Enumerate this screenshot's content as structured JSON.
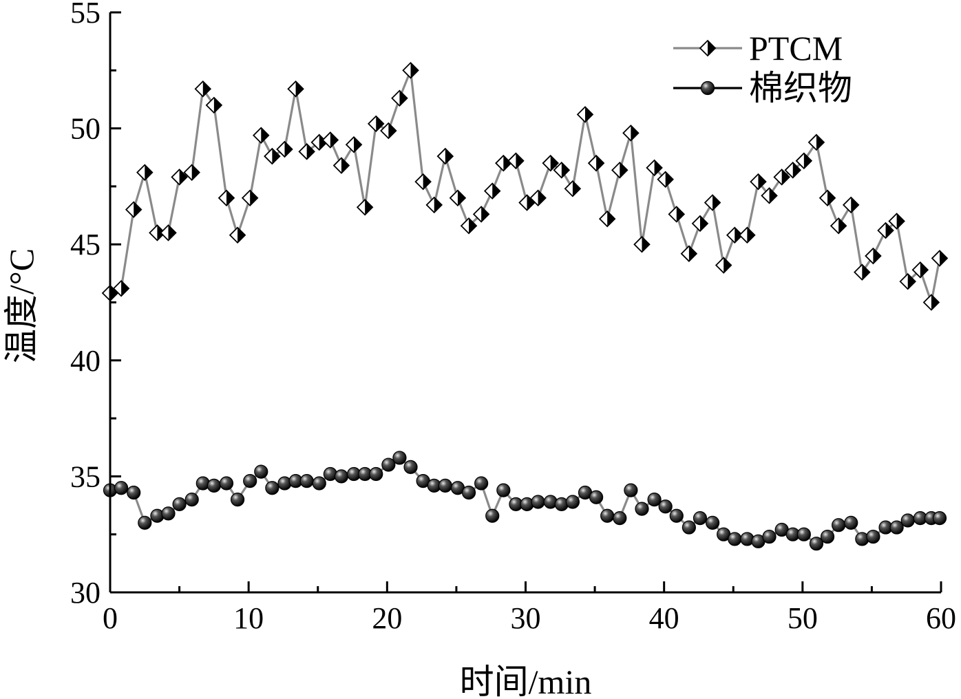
{
  "chart_data": {
    "type": "line",
    "title": "",
    "xlabel": "时间/min",
    "ylabel": "温度/°C",
    "xlim": [
      0,
      60
    ],
    "ylim": [
      30,
      55
    ],
    "xticks": [
      "0",
      "10",
      "20",
      "30",
      "40",
      "50",
      "60"
    ],
    "yticks": [
      "30",
      "35",
      "40",
      "45",
      "50",
      "55"
    ],
    "grid": false,
    "legend_position": "top-right",
    "line_color": "#8a8a8a",
    "series": [
      {
        "name": "PTCM",
        "marker": "half-filled-diamond",
        "x": [
          0,
          0.8,
          1.7,
          2.5,
          3.4,
          4.2,
          5.0,
          5.9,
          6.7,
          7.5,
          8.4,
          9.2,
          10.1,
          10.9,
          11.7,
          12.6,
          13.4,
          14.2,
          15.1,
          15.9,
          16.7,
          17.6,
          18.4,
          19.2,
          20.1,
          20.9,
          21.7,
          22.6,
          23.4,
          24.2,
          25.1,
          25.9,
          26.8,
          27.6,
          28.4,
          29.3,
          30.1,
          30.9,
          31.8,
          32.6,
          33.4,
          34.3,
          35.1,
          35.9,
          36.8,
          37.6,
          38.4,
          39.3,
          40.1,
          40.9,
          41.8,
          42.6,
          43.5,
          44.3,
          45.1,
          46.0,
          46.8,
          47.6,
          48.5,
          49.3,
          50.1,
          51.0,
          51.8,
          52.6,
          53.5,
          54.3,
          55.1,
          56.0,
          56.8,
          57.6,
          58.5,
          59.3,
          59.9
        ],
        "y": [
          42.9,
          43.1,
          46.5,
          48.1,
          45.5,
          45.5,
          47.9,
          48.1,
          51.7,
          51.0,
          47.0,
          45.4,
          47.0,
          49.7,
          48.8,
          49.1,
          51.7,
          49.0,
          49.4,
          49.5,
          48.4,
          49.3,
          46.6,
          50.2,
          49.9,
          51.3,
          52.5,
          47.7,
          46.7,
          48.8,
          47.0,
          45.8,
          46.3,
          47.3,
          48.5,
          48.6,
          46.8,
          47.0,
          48.5,
          48.2,
          47.4,
          50.6,
          48.5,
          46.1,
          48.2,
          49.8,
          45.0,
          48.3,
          47.8,
          46.3,
          44.6,
          45.9,
          46.8,
          44.1,
          45.4,
          45.4,
          47.7,
          47.1,
          47.9,
          48.2,
          48.6,
          49.4,
          47.0,
          45.8,
          46.7,
          43.8,
          44.5,
          45.6,
          46.0,
          43.4,
          43.9,
          42.5,
          44.4
        ]
      },
      {
        "name": "棉织物",
        "marker": "filled-circle",
        "x": [
          0,
          0.8,
          1.7,
          2.5,
          3.4,
          4.2,
          5.0,
          5.9,
          6.7,
          7.5,
          8.4,
          9.2,
          10.1,
          10.9,
          11.7,
          12.6,
          13.4,
          14.2,
          15.1,
          15.9,
          16.7,
          17.6,
          18.4,
          19.2,
          20.1,
          20.9,
          21.7,
          22.6,
          23.4,
          24.2,
          25.1,
          25.9,
          26.8,
          27.6,
          28.4,
          29.3,
          30.1,
          30.9,
          31.8,
          32.6,
          33.4,
          34.3,
          35.1,
          35.9,
          36.8,
          37.6,
          38.4,
          39.3,
          40.1,
          40.9,
          41.8,
          42.6,
          43.5,
          44.3,
          45.1,
          46.0,
          46.8,
          47.6,
          48.5,
          49.3,
          50.1,
          51.0,
          51.8,
          52.6,
          53.5,
          54.3,
          55.1,
          56.0,
          56.8,
          57.6,
          58.5,
          59.3,
          59.9
        ],
        "y": [
          34.4,
          34.5,
          34.3,
          33.0,
          33.3,
          33.4,
          33.8,
          34.0,
          34.7,
          34.6,
          34.7,
          34.0,
          34.8,
          35.2,
          34.5,
          34.7,
          34.8,
          34.8,
          34.7,
          35.1,
          35.0,
          35.1,
          35.1,
          35.1,
          35.5,
          35.8,
          35.4,
          34.8,
          34.6,
          34.6,
          34.5,
          34.3,
          34.7,
          33.3,
          34.4,
          33.8,
          33.8,
          33.9,
          33.9,
          33.8,
          33.9,
          34.3,
          34.1,
          33.3,
          33.2,
          34.4,
          33.6,
          34.0,
          33.7,
          33.3,
          32.8,
          33.2,
          33.0,
          32.5,
          32.3,
          32.3,
          32.2,
          32.4,
          32.7,
          32.5,
          32.5,
          32.1,
          32.4,
          32.9,
          33.0,
          32.3,
          32.4,
          32.8,
          32.8,
          33.1,
          33.2,
          33.2,
          33.2
        ]
      }
    ]
  }
}
